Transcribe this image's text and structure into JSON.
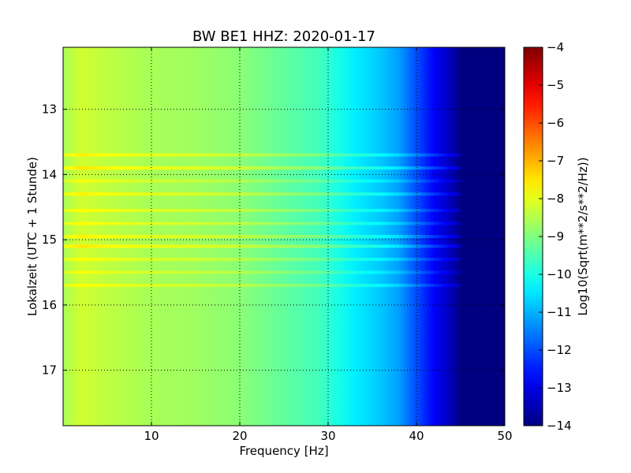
{
  "chart_data": {
    "type": "heatmap",
    "title": "BW BE1 HHZ: 2020-01-17",
    "xlabel": "Frequency [Hz]",
    "ylabel": "Lokalzeit (UTC + 1 Stunde)",
    "xlim": [
      0,
      50
    ],
    "ylim": [
      12.05,
      17.85
    ],
    "y_inverted": true,
    "x_ticks": [
      10,
      20,
      30,
      40,
      50
    ],
    "y_ticks": [
      13,
      14,
      15,
      16,
      17
    ],
    "grid": true,
    "colormap": "jet",
    "colorbar": {
      "label": "Log10(Sqrt(m**2/s**2/Hz))",
      "range": [
        -14,
        -4
      ],
      "ticks": [
        -4,
        -5,
        -6,
        -7,
        -8,
        -9,
        -10,
        -11,
        -12,
        -13,
        -14
      ]
    },
    "spectrum_profile": [
      {
        "freq": 0,
        "value": -8.6
      },
      {
        "freq": 2,
        "value": -8.2
      },
      {
        "freq": 5,
        "value": -8.4
      },
      {
        "freq": 10,
        "value": -8.6
      },
      {
        "freq": 15,
        "value": -8.7
      },
      {
        "freq": 20,
        "value": -8.9
      },
      {
        "freq": 25,
        "value": -9.3
      },
      {
        "freq": 29,
        "value": -9.6
      },
      {
        "freq": 31,
        "value": -10.0
      },
      {
        "freq": 33,
        "value": -10.4
      },
      {
        "freq": 36,
        "value": -10.8
      },
      {
        "freq": 38,
        "value": -11.2
      },
      {
        "freq": 40,
        "value": -12.0
      },
      {
        "freq": 42,
        "value": -12.8
      },
      {
        "freq": 44,
        "value": -13.5
      },
      {
        "freq": 45,
        "value": -14.0
      },
      {
        "freq": 50,
        "value": -14.0
      }
    ],
    "bright_bands": [
      {
        "time": 13.7,
        "delta": 0.6
      },
      {
        "time": 13.9,
        "delta": 0.7
      },
      {
        "time": 14.1,
        "delta": 0.4
      },
      {
        "time": 14.3,
        "delta": 0.6
      },
      {
        "time": 14.55,
        "delta": 0.5
      },
      {
        "time": 14.75,
        "delta": 0.5
      },
      {
        "time": 14.95,
        "delta": 0.6
      },
      {
        "time": 15.1,
        "delta": 0.7
      },
      {
        "time": 15.3,
        "delta": 0.5
      },
      {
        "time": 15.5,
        "delta": 0.4
      },
      {
        "time": 15.7,
        "delta": 0.5
      }
    ]
  }
}
